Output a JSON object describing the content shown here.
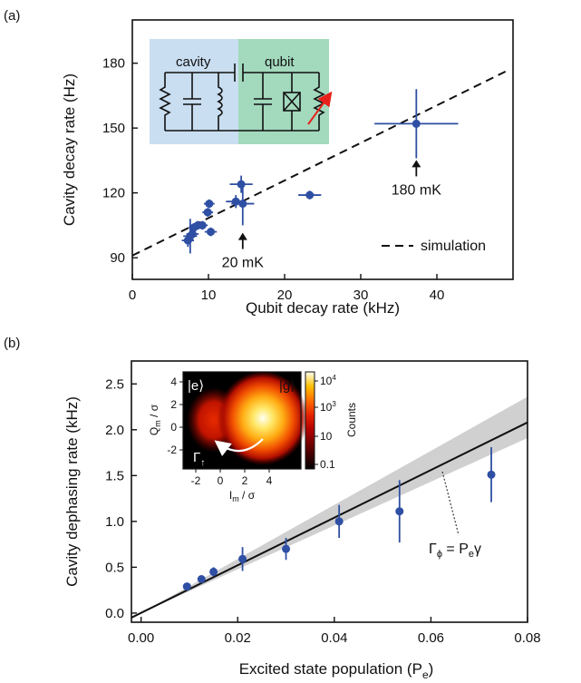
{
  "figure": {
    "panel_labels": [
      "(a)",
      "(b)"
    ]
  },
  "chart_data": [
    {
      "type": "scatter",
      "panel": "(a)",
      "xlabel": "Qubit decay rate (kHz)",
      "ylabel": "Cavity decay rate (Hz)",
      "xlim": [
        0,
        50
      ],
      "ylim": [
        80,
        200
      ],
      "xticks": [
        0,
        10,
        20,
        30,
        40
      ],
      "yticks": [
        90,
        120,
        150,
        180
      ],
      "grid": false,
      "legend": {
        "placement": "bottom-right",
        "entries": [
          "simulation"
        ]
      },
      "series": [
        {
          "name": "",
          "points": [
            {
              "x": 7.3,
              "y": 98,
              "xerr": 0.8,
              "yerr": 3
            },
            {
              "x": 7.6,
              "y": 100,
              "xerr": 0.9,
              "yerr": 8
            },
            {
              "x": 7.9,
              "y": 101,
              "xerr": 0.8,
              "yerr": 3
            },
            {
              "x": 8.1,
              "y": 104,
              "xerr": 0.7,
              "yerr": 2
            },
            {
              "x": 8.6,
              "y": 105,
              "xerr": 0.7,
              "yerr": 2
            },
            {
              "x": 9.2,
              "y": 105,
              "xerr": 0.7,
              "yerr": 2
            },
            {
              "x": 9.9,
              "y": 111,
              "xerr": 0.7,
              "yerr": 2
            },
            {
              "x": 10.1,
              "y": 115,
              "xerr": 0.7,
              "yerr": 2
            },
            {
              "x": 10.3,
              "y": 102,
              "xerr": 0.8,
              "yerr": 2
            },
            {
              "x": 13.6,
              "y": 116,
              "xerr": 1.3,
              "yerr": 3
            },
            {
              "x": 14.3,
              "y": 124,
              "xerr": 1.5,
              "yerr": 4
            },
            {
              "x": 14.5,
              "y": 115,
              "xerr": 1.5,
              "yerr": 10
            },
            {
              "x": 23.3,
              "y": 119,
              "xerr": 1.5,
              "yerr": 2
            },
            {
              "x": 37.3,
              "y": 152,
              "xerr": 5.5,
              "yerr": 16
            }
          ]
        },
        {
          "name": "simulation",
          "style": "dashed",
          "x": [
            0,
            49.5
          ],
          "y": [
            91,
            177
          ]
        }
      ],
      "annotations": [
        {
          "text": "20 mK",
          "x": 14.5,
          "y": 115
        },
        {
          "text": "180 mK",
          "x": 37.3,
          "y": 152
        }
      ],
      "inset": {
        "labels": [
          "cavity",
          "qubit"
        ],
        "colors": {
          "cavity": "#c9def0",
          "qubit": "#a3d9bd"
        }
      }
    },
    {
      "type": "scatter",
      "panel": "(b)",
      "xlabel": "Excited state population (P",
      "xlabel_sub": "e",
      "xlabel_end": ")",
      "ylabel": "Cavity dephasing rate (kHz)",
      "xlim": [
        -0.002,
        0.08
      ],
      "ylim": [
        -0.1,
        2.75
      ],
      "xticks": [
        0.0,
        0.02,
        0.04,
        0.06,
        0.08
      ],
      "xtick_labels": [
        "0.00",
        "0.02",
        "0.04",
        "0.06",
        "0.08"
      ],
      "yticks": [
        0.0,
        0.5,
        1.0,
        1.5,
        2.0,
        2.5
      ],
      "ytick_labels": [
        "0.0",
        "0.5",
        "1.0",
        "1.5",
        "2.0",
        "2.5"
      ],
      "grid": false,
      "series": [
        {
          "name": "",
          "points": [
            {
              "x": 0.0095,
              "y": 0.29,
              "yerr": 0.04
            },
            {
              "x": 0.0125,
              "y": 0.37,
              "yerr": 0.04
            },
            {
              "x": 0.015,
              "y": 0.45,
              "yerr": 0.05
            },
            {
              "x": 0.021,
              "y": 0.59,
              "yerr": 0.13
            },
            {
              "x": 0.03,
              "y": 0.7,
              "yerr": 0.12
            },
            {
              "x": 0.041,
              "y": 1.0,
              "yerr": 0.18
            },
            {
              "x": 0.0535,
              "y": 1.11,
              "yerr": 0.34
            },
            {
              "x": 0.0725,
              "y": 1.51,
              "yerr": 0.3
            }
          ]
        },
        {
          "name": "",
          "style": "solid",
          "x": [
            -0.002,
            0.08
          ],
          "y": [
            -0.05,
            2.08
          ]
        }
      ],
      "band": {
        "x": [
          0.0,
          0.08
        ],
        "lower": [
          0.0,
          1.91
        ],
        "upper": [
          0.0,
          2.36
        ],
        "color": "#c8c8c8"
      },
      "annotation": {
        "pre": "Γ",
        "sub1": "ϕ",
        "mid": " = P",
        "sub2": "e",
        "post": "γ"
      },
      "inset": {
        "state_labels": [
          "|e⟩",
          "|g⟩"
        ],
        "arrow_label": "Γ",
        "arrow_label_sub": "↑",
        "xlabel": "I",
        "xlabel_sub": "m",
        "xlabel_end": " / σ",
        "ylabel": "Q",
        "ylabel_sub": "m",
        "ylabel_end": " / σ",
        "xtick_labels": [
          "-2",
          "0",
          "2",
          "4"
        ],
        "ytick_labels": [
          "4",
          "2",
          "0",
          "-2"
        ],
        "colorbar_label": "Counts",
        "colorbar_ticks": [
          {
            "base": "10",
            "exp": "4"
          },
          {
            "base": "10",
            "exp": "3"
          },
          {
            "base": "10",
            "exp": ""
          },
          {
            "base": "0.1",
            "exp": ""
          }
        ],
        "colormap": [
          "#000000",
          "#5a0000",
          "#b00000",
          "#e62000",
          "#ff6a00",
          "#ffc000",
          "#fffff0"
        ]
      }
    }
  ]
}
